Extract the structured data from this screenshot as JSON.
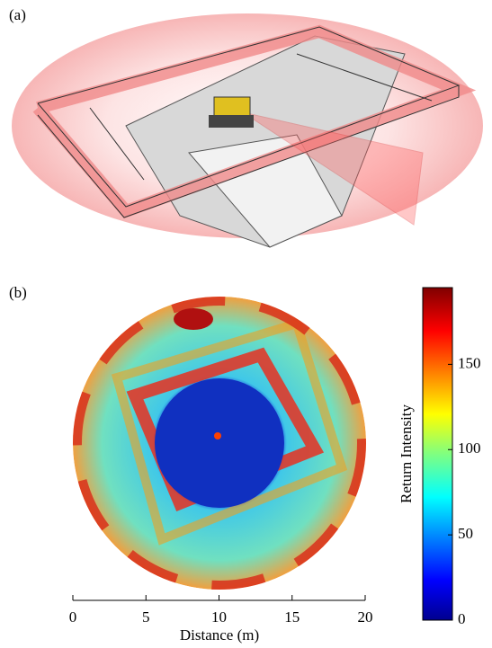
{
  "panel_labels": [
    "(a)",
    "(b)"
  ],
  "chart_data": {
    "type": "image",
    "xlabel": "Distance (m)",
    "xlim": [
      0,
      20
    ],
    "xticks": [
      0,
      5,
      10,
      15,
      20
    ],
    "colorbar": {
      "label": "Return Intensity",
      "lim": [
        0,
        195
      ],
      "ticks": [
        0,
        50,
        100,
        150
      ]
    }
  }
}
